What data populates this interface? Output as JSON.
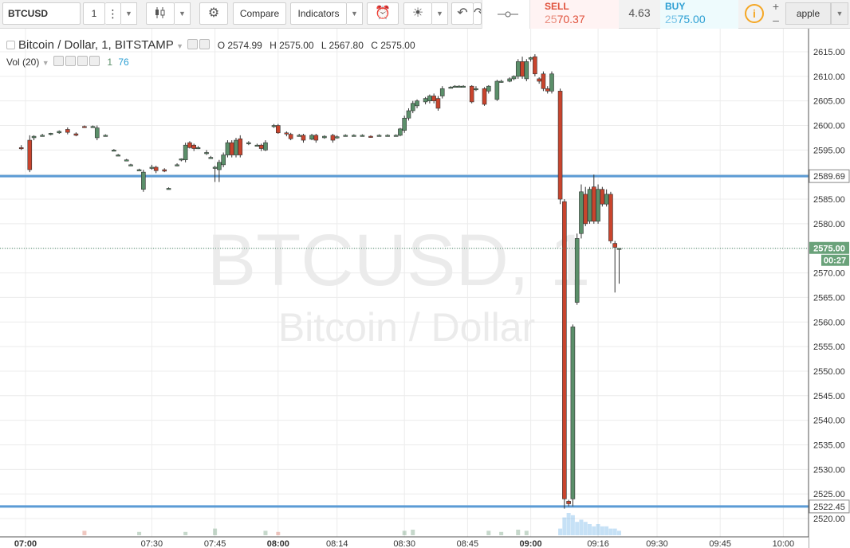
{
  "toolbar": {
    "symbol": "BTCUSD",
    "interval": "1",
    "compare_label": "Compare",
    "indicators_label": "Indicators",
    "sell_label": "SELL",
    "sell_price_dim": "25",
    "sell_price_main": "70.37",
    "spread": "4.63",
    "buy_label": "BUY",
    "buy_price_dim": "25",
    "buy_price_main": "75.00",
    "watch_symbol": "apple",
    "zoom_in": "+",
    "zoom_out": "–",
    "candle_icon": "candlestick-icon",
    "gear_icon": "gear-icon",
    "alert_icon": "alarm-icon",
    "bulb_icon": "lightbulb-icon",
    "undo_icon": "undo-icon",
    "info_icon": "info-icon"
  },
  "legend": {
    "title": "Bitcoin / Dollar, 1, BITSTAMP",
    "o_label": "O",
    "o_value": "2574.99",
    "h_label": "H",
    "h_value": "2575.00",
    "l_label": "L",
    "l_value": "2567.80",
    "c_label": "C",
    "c_value": "2575.00",
    "vol_label": "Vol (20)",
    "vol_value_1": "1",
    "vol_value_2": "76"
  },
  "watermark": {
    "line1": "BTCUSD, 1",
    "line2": "Bitcoin / Dollar"
  },
  "chart_data": {
    "type": "candlestick",
    "ylim": [
      2518,
      2617
    ],
    "y_ticks": [
      2615,
      2610,
      2605,
      2600,
      2595,
      2590,
      2585,
      2580,
      2575,
      2570,
      2565,
      2560,
      2555,
      2550,
      2545,
      2540,
      2535,
      2530,
      2525,
      2520
    ],
    "x_ticks": [
      {
        "label": "07:00",
        "x": 0,
        "bold": true
      },
      {
        "label": "07:30",
        "x": 30,
        "bold": false
      },
      {
        "label": "07:45",
        "x": 45,
        "bold": false
      },
      {
        "label": "08:00",
        "x": 60,
        "bold": true
      },
      {
        "label": "08:14",
        "x": 74,
        "bold": false
      },
      {
        "label": "08:30",
        "x": 90,
        "bold": false
      },
      {
        "label": "08:45",
        "x": 105,
        "bold": false
      },
      {
        "label": "09:00",
        "x": 120,
        "bold": true
      },
      {
        "label": "09:16",
        "x": 136,
        "bold": false
      },
      {
        "label": "09:30",
        "x": 150,
        "bold": false
      },
      {
        "label": "09:45",
        "x": 165,
        "bold": false
      },
      {
        "label": "10:00",
        "x": 180,
        "bold": false
      }
    ],
    "x_unit": "minutes after 07:00",
    "x_range": [
      -5,
      183
    ],
    "hlines": [
      {
        "value": 2589.69,
        "label": "2589.69",
        "color": "#5b9bd5"
      },
      {
        "value": 2522.45,
        "label": "2522.45",
        "color": "#5b9bd5"
      }
    ],
    "last_price": {
      "value": 2575.0,
      "label": "2575.00",
      "countdown": "00:27",
      "color": "#6aa27a"
    },
    "up_color": "#5b8f6a",
    "down_color": "#c9442d",
    "candles": [
      {
        "t": -1,
        "o": 2595.5,
        "h": 2596,
        "l": 2595,
        "c": 2595.3
      },
      {
        "t": 1,
        "o": 2597,
        "h": 2598,
        "l": 2590.5,
        "c": 2591
      },
      {
        "t": 2,
        "o": 2597.5,
        "h": 2598,
        "l": 2597,
        "c": 2597.8
      },
      {
        "t": 4,
        "o": 2598,
        "h": 2598.3,
        "l": 2597.8,
        "c": 2598
      },
      {
        "t": 6,
        "o": 2598.2,
        "h": 2598.5,
        "l": 2598,
        "c": 2598.4
      },
      {
        "t": 8,
        "o": 2598.5,
        "h": 2599,
        "l": 2598.3,
        "c": 2598.8
      },
      {
        "t": 10,
        "o": 2599.2,
        "h": 2599.6,
        "l": 2598.2,
        "c": 2598.6
      },
      {
        "t": 12,
        "o": 2598.3,
        "h": 2598.6,
        "l": 2597.8,
        "c": 2598
      },
      {
        "t": 14,
        "o": 2599.8,
        "h": 2600,
        "l": 2599.5,
        "c": 2599.7
      },
      {
        "t": 16,
        "o": 2599.8,
        "h": 2600,
        "l": 2599.6,
        "c": 2599.8
      },
      {
        "t": 17,
        "o": 2597.5,
        "h": 2600,
        "l": 2597,
        "c": 2599.5
      },
      {
        "t": 19,
        "o": 2598,
        "h": 2598.2,
        "l": 2597.8,
        "c": 2598
      },
      {
        "t": 21,
        "o": 2595,
        "h": 2595.2,
        "l": 2594.8,
        "c": 2595
      },
      {
        "t": 22,
        "o": 2594,
        "h": 2594.2,
        "l": 2593.8,
        "c": 2594
      },
      {
        "t": 24,
        "o": 2593,
        "h": 2593.2,
        "l": 2592.8,
        "c": 2593
      },
      {
        "t": 25,
        "o": 2592,
        "h": 2592.2,
        "l": 2591.8,
        "c": 2592
      },
      {
        "t": 27,
        "o": 2591,
        "h": 2591.2,
        "l": 2590.8,
        "c": 2591
      },
      {
        "t": 28,
        "o": 2587,
        "h": 2591,
        "l": 2586.5,
        "c": 2590.5
      },
      {
        "t": 30,
        "o": 2591.5,
        "h": 2592,
        "l": 2591,
        "c": 2591.5
      },
      {
        "t": 31,
        "o": 2591.5,
        "h": 2591.8,
        "l": 2590.3,
        "c": 2590.8
      },
      {
        "t": 33,
        "o": 2591,
        "h": 2591.3,
        "l": 2590.5,
        "c": 2590.7
      },
      {
        "t": 34,
        "o": 2587.2,
        "h": 2587.4,
        "l": 2587,
        "c": 2587.2
      },
      {
        "t": 36,
        "o": 2592,
        "h": 2592.3,
        "l": 2591.7,
        "c": 2592
      },
      {
        "t": 37,
        "o": 2593,
        "h": 2593.3,
        "l": 2592.7,
        "c": 2593.2
      },
      {
        "t": 38,
        "o": 2593,
        "h": 2596.5,
        "l": 2592.5,
        "c": 2596
      },
      {
        "t": 39,
        "o": 2596.5,
        "h": 2596.8,
        "l": 2595.3,
        "c": 2595.5
      },
      {
        "t": 40,
        "o": 2596,
        "h": 2596.3,
        "l": 2594.8,
        "c": 2595.3
      },
      {
        "t": 41,
        "o": 2595.5,
        "h": 2595.8,
        "l": 2595.2,
        "c": 2595.5
      },
      {
        "t": 43,
        "o": 2594.5,
        "h": 2595,
        "l": 2594,
        "c": 2594.5
      },
      {
        "t": 44,
        "o": 2593.5,
        "h": 2593.8,
        "l": 2593.2,
        "c": 2593.5
      },
      {
        "t": 45,
        "o": 2591.5,
        "h": 2591.8,
        "l": 2588.5,
        "c": 2591.5
      },
      {
        "t": 46,
        "o": 2591,
        "h": 2593,
        "l": 2588.5,
        "c": 2592.5
      },
      {
        "t": 47,
        "o": 2592,
        "h": 2594.5,
        "l": 2591.5,
        "c": 2594
      },
      {
        "t": 48,
        "o": 2594,
        "h": 2597,
        "l": 2593.5,
        "c": 2596.5
      },
      {
        "t": 49,
        "o": 2596.5,
        "h": 2597,
        "l": 2593.5,
        "c": 2594
      },
      {
        "t": 50,
        "o": 2594,
        "h": 2597.5,
        "l": 2593.5,
        "c": 2597
      },
      {
        "t": 51,
        "o": 2597.3,
        "h": 2598,
        "l": 2593.5,
        "c": 2594
      },
      {
        "t": 53,
        "o": 2596.5,
        "h": 2596.8,
        "l": 2596,
        "c": 2596.5
      },
      {
        "t": 55,
        "o": 2596,
        "h": 2596.3,
        "l": 2595.8,
        "c": 2596
      },
      {
        "t": 56,
        "o": 2596,
        "h": 2596.3,
        "l": 2594.8,
        "c": 2595.3
      },
      {
        "t": 57,
        "o": 2595,
        "h": 2597,
        "l": 2594.8,
        "c": 2596.5
      },
      {
        "t": 59,
        "o": 2600,
        "h": 2600.3,
        "l": 2599.5,
        "c": 2600
      },
      {
        "t": 60,
        "o": 2600,
        "h": 2600.3,
        "l": 2598.3,
        "c": 2598.5
      },
      {
        "t": 62,
        "o": 2598.5,
        "h": 2598.8,
        "l": 2597.8,
        "c": 2598.3
      },
      {
        "t": 63,
        "o": 2598.2,
        "h": 2598.5,
        "l": 2597,
        "c": 2597.3
      },
      {
        "t": 65,
        "o": 2598,
        "h": 2598.3,
        "l": 2597.8,
        "c": 2598
      },
      {
        "t": 66,
        "o": 2598,
        "h": 2598.3,
        "l": 2596.5,
        "c": 2597
      },
      {
        "t": 68,
        "o": 2597.2,
        "h": 2598.3,
        "l": 2597,
        "c": 2598
      },
      {
        "t": 69,
        "o": 2598,
        "h": 2598.3,
        "l": 2596.5,
        "c": 2597
      },
      {
        "t": 71,
        "o": 2597.5,
        "h": 2598,
        "l": 2597.3,
        "c": 2597.8
      },
      {
        "t": 73,
        "o": 2598,
        "h": 2598.3,
        "l": 2596.5,
        "c": 2597
      },
      {
        "t": 74,
        "o": 2597.5,
        "h": 2598,
        "l": 2597.3,
        "c": 2597.7
      },
      {
        "t": 76,
        "o": 2598,
        "h": 2598.2,
        "l": 2597.8,
        "c": 2598
      },
      {
        "t": 78,
        "o": 2598,
        "h": 2598.2,
        "l": 2597.8,
        "c": 2598
      },
      {
        "t": 80,
        "o": 2598,
        "h": 2598.2,
        "l": 2597.8,
        "c": 2598
      },
      {
        "t": 82,
        "o": 2597.8,
        "h": 2598,
        "l": 2597.5,
        "c": 2597.7
      },
      {
        "t": 84,
        "o": 2598,
        "h": 2598.2,
        "l": 2597.8,
        "c": 2598
      },
      {
        "t": 86,
        "o": 2598,
        "h": 2598.2,
        "l": 2597.8,
        "c": 2598
      },
      {
        "t": 88,
        "o": 2598,
        "h": 2598.2,
        "l": 2597.8,
        "c": 2598
      },
      {
        "t": 89,
        "o": 2598,
        "h": 2599.5,
        "l": 2597.8,
        "c": 2599.3
      },
      {
        "t": 90,
        "o": 2599,
        "h": 2602,
        "l": 2598.5,
        "c": 2601.5
      },
      {
        "t": 91,
        "o": 2601.5,
        "h": 2603.5,
        "l": 2601,
        "c": 2603
      },
      {
        "t": 92,
        "o": 2603,
        "h": 2605,
        "l": 2602.5,
        "c": 2604.5
      },
      {
        "t": 93,
        "o": 2604,
        "h": 2605.3,
        "l": 2603.5,
        "c": 2605
      },
      {
        "t": 95,
        "o": 2604.8,
        "h": 2605.8,
        "l": 2604.3,
        "c": 2605.5
      },
      {
        "t": 96,
        "o": 2605,
        "h": 2606.3,
        "l": 2604.5,
        "c": 2606
      },
      {
        "t": 97,
        "o": 2606,
        "h": 2606.5,
        "l": 2604.5,
        "c": 2605
      },
      {
        "t": 98,
        "o": 2605.5,
        "h": 2606,
        "l": 2603,
        "c": 2603.5
      },
      {
        "t": 99,
        "o": 2606,
        "h": 2608,
        "l": 2605.5,
        "c": 2607.5
      },
      {
        "t": 101,
        "o": 2607.8,
        "h": 2608,
        "l": 2607.6,
        "c": 2607.8
      },
      {
        "t": 102,
        "o": 2608,
        "h": 2608.2,
        "l": 2607.8,
        "c": 2608
      },
      {
        "t": 103,
        "o": 2608,
        "h": 2608.2,
        "l": 2607.8,
        "c": 2608
      },
      {
        "t": 104,
        "o": 2608,
        "h": 2608.2,
        "l": 2607.8,
        "c": 2608
      },
      {
        "t": 106,
        "o": 2608,
        "h": 2608.2,
        "l": 2604.5,
        "c": 2604.8
      },
      {
        "t": 107,
        "o": 2607.5,
        "h": 2608,
        "l": 2607,
        "c": 2607.5
      },
      {
        "t": 109,
        "o": 2607.5,
        "h": 2607.8,
        "l": 2604,
        "c": 2604.3
      },
      {
        "t": 110,
        "o": 2607,
        "h": 2608.2,
        "l": 2606.5,
        "c": 2608
      },
      {
        "t": 112,
        "o": 2605.3,
        "h": 2609.3,
        "l": 2605,
        "c": 2609
      },
      {
        "t": 113,
        "o": 2609,
        "h": 2609.3,
        "l": 2608.7,
        "c": 2609
      },
      {
        "t": 115,
        "o": 2609,
        "h": 2609.8,
        "l": 2608.8,
        "c": 2609.5
      },
      {
        "t": 116,
        "o": 2609.5,
        "h": 2610.2,
        "l": 2609.2,
        "c": 2610
      },
      {
        "t": 117,
        "o": 2610,
        "h": 2613.5,
        "l": 2609.5,
        "c": 2613
      },
      {
        "t": 118,
        "o": 2613,
        "h": 2614,
        "l": 2609.5,
        "c": 2610
      },
      {
        "t": 119,
        "o": 2609.5,
        "h": 2613.5,
        "l": 2609,
        "c": 2613
      },
      {
        "t": 120,
        "o": 2613.5,
        "h": 2614,
        "l": 2613,
        "c": 2613.8
      },
      {
        "t": 121,
        "o": 2614,
        "h": 2614.5,
        "l": 2610,
        "c": 2610.5
      },
      {
        "t": 122,
        "o": 2609.5,
        "h": 2609.8,
        "l": 2608.5,
        "c": 2609
      },
      {
        "t": 123,
        "o": 2610.5,
        "h": 2611,
        "l": 2607,
        "c": 2607.5
      },
      {
        "t": 124,
        "o": 2607.5,
        "h": 2608,
        "l": 2606.5,
        "c": 2607
      },
      {
        "t": 125,
        "o": 2607,
        "h": 2611,
        "l": 2606.5,
        "c": 2610.5
      },
      {
        "t": 127,
        "o": 2607,
        "h": 2607.5,
        "l": 2584,
        "c": 2585
      },
      {
        "t": 128,
        "o": 2584.5,
        "h": 2585,
        "l": 2522,
        "c": 2524
      },
      {
        "t": 129,
        "o": 2523.5,
        "h": 2523.8,
        "l": 2522.5,
        "c": 2523
      },
      {
        "t": 130,
        "o": 2524,
        "h": 2559.5,
        "l": 2522.5,
        "c": 2559
      },
      {
        "t": 131,
        "o": 2564,
        "h": 2578,
        "l": 2563.5,
        "c": 2577
      },
      {
        "t": 132,
        "o": 2578,
        "h": 2588,
        "l": 2577,
        "c": 2586.5
      },
      {
        "t": 133,
        "o": 2586,
        "h": 2587.5,
        "l": 2579.5,
        "c": 2580
      },
      {
        "t": 134,
        "o": 2580.5,
        "h": 2587.5,
        "l": 2580,
        "c": 2587
      },
      {
        "t": 135,
        "o": 2587.5,
        "h": 2590,
        "l": 2580,
        "c": 2580.5
      },
      {
        "t": 136,
        "o": 2580.5,
        "h": 2588,
        "l": 2580,
        "c": 2587
      },
      {
        "t": 137,
        "o": 2587,
        "h": 2587.5,
        "l": 2583.5,
        "c": 2584
      },
      {
        "t": 138,
        "o": 2584,
        "h": 2587,
        "l": 2583.5,
        "c": 2586
      },
      {
        "t": 139,
        "o": 2586,
        "h": 2586.5,
        "l": 2576,
        "c": 2576.5
      },
      {
        "t": 140,
        "o": 2576,
        "h": 2576.5,
        "l": 2566,
        "c": 2575.2
      },
      {
        "t": 141,
        "o": 2574.99,
        "h": 2575,
        "l": 2567.8,
        "c": 2575
      }
    ],
    "volumes": [
      {
        "t": 14,
        "v": 2
      },
      {
        "t": 27,
        "v": 1.5
      },
      {
        "t": 38,
        "v": 1.5
      },
      {
        "t": 45,
        "v": 3
      },
      {
        "t": 57,
        "v": 2
      },
      {
        "t": 60,
        "v": 1.5
      },
      {
        "t": 90,
        "v": 2
      },
      {
        "t": 92,
        "v": 2.5
      },
      {
        "t": 110,
        "v": 2
      },
      {
        "t": 113,
        "v": 1.5
      },
      {
        "t": 117,
        "v": 2.5
      },
      {
        "t": 119,
        "v": 2
      },
      {
        "t": 127,
        "v": 3
      },
      {
        "t": 128,
        "v": 8
      },
      {
        "t": 129,
        "v": 10
      },
      {
        "t": 130,
        "v": 9
      },
      {
        "t": 131,
        "v": 6
      },
      {
        "t": 132,
        "v": 7
      },
      {
        "t": 133,
        "v": 6
      },
      {
        "t": 134,
        "v": 5
      },
      {
        "t": 135,
        "v": 4
      },
      {
        "t": 136,
        "v": 5
      },
      {
        "t": 137,
        "v": 4
      },
      {
        "t": 138,
        "v": 4
      },
      {
        "t": 139,
        "v": 3
      },
      {
        "t": 140,
        "v": 3
      },
      {
        "t": 141,
        "v": 2
      }
    ]
  }
}
